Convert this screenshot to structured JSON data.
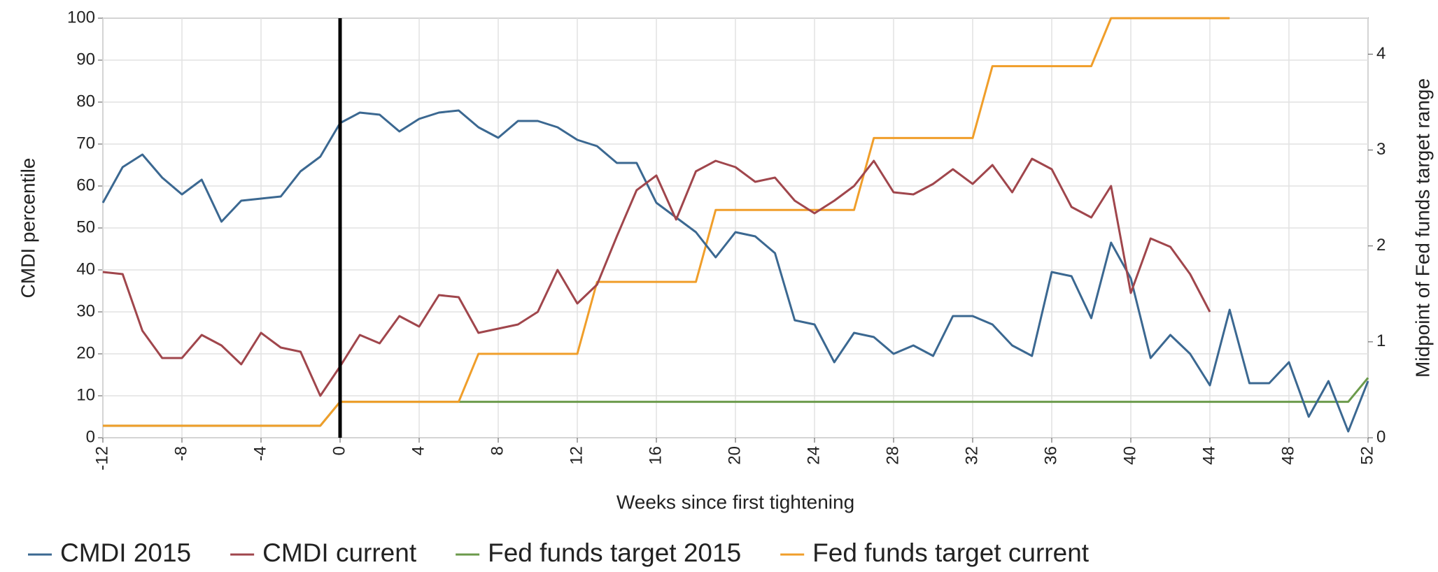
{
  "chart_data": {
    "type": "line",
    "xlabel": "Weeks since first tightening",
    "ylabel": "CMDI percentile",
    "y2label": "Midpoint of Fed funds target range",
    "x": [
      -12,
      -11,
      -10,
      -9,
      -8,
      -7,
      -6,
      -5,
      -4,
      -3,
      -2,
      -1,
      0,
      1,
      2,
      3,
      4,
      5,
      6,
      7,
      8,
      9,
      10,
      11,
      12,
      13,
      14,
      15,
      16,
      17,
      18,
      19,
      20,
      21,
      22,
      23,
      24,
      25,
      26,
      27,
      28,
      29,
      30,
      31,
      32,
      33,
      34,
      35,
      36,
      37,
      38,
      39,
      40,
      41,
      42,
      43,
      44,
      45,
      46,
      47,
      48,
      49,
      50,
      51,
      52
    ],
    "series": [
      {
        "name": "CMDI 2015",
        "color": "#3b6891",
        "values": [
          56,
          64.5,
          67.5,
          62,
          58,
          61.5,
          51.5,
          56.5,
          57,
          57.5,
          63.5,
          67,
          75,
          77.5,
          77,
          73,
          76,
          77.5,
          78,
          74,
          71.5,
          75.5,
          75.5,
          74,
          71,
          69.5,
          65.5,
          65.5,
          56,
          52.5,
          49,
          43,
          49,
          48,
          44,
          28,
          27,
          18,
          25,
          24,
          20,
          22,
          19.5,
          29,
          29,
          27,
          22,
          19.5,
          39.5,
          38.5,
          28.5,
          46.5,
          38,
          19,
          24.5,
          20,
          12.5,
          30.5,
          13,
          13,
          18,
          5,
          13.5,
          1.5,
          13.5
        ]
      },
      {
        "name": "CMDI current",
        "color": "#a0464c",
        "values": [
          39.5,
          39,
          25.5,
          19,
          19,
          24.5,
          22,
          17.5,
          25,
          21.5,
          20.5,
          10,
          17,
          24.5,
          22.5,
          29,
          26.5,
          34,
          33.5,
          25,
          26,
          27,
          30,
          40,
          32,
          36.5,
          48,
          59,
          62.5,
          52,
          63.5,
          66,
          64.5,
          61,
          62,
          56.5,
          53.5,
          56.5,
          60,
          66,
          58.5,
          58,
          60.5,
          64,
          60.5,
          65,
          58.5,
          66.5,
          64,
          55,
          52.5,
          60,
          34.5,
          47.5,
          45.5,
          39,
          30,
          null,
          null,
          null,
          null,
          null,
          null,
          null,
          null
        ]
      },
      {
        "name": "Fed funds target 2015",
        "color": "#6b9a4b",
        "axis": "y2",
        "values": [
          0.125,
          0.125,
          0.125,
          0.125,
          0.125,
          0.125,
          0.125,
          0.125,
          0.125,
          0.125,
          0.125,
          0.125,
          0.375,
          0.375,
          0.375,
          0.375,
          0.375,
          0.375,
          0.375,
          0.375,
          0.375,
          0.375,
          0.375,
          0.375,
          0.375,
          0.375,
          0.375,
          0.375,
          0.375,
          0.375,
          0.375,
          0.375,
          0.375,
          0.375,
          0.375,
          0.375,
          0.375,
          0.375,
          0.375,
          0.375,
          0.375,
          0.375,
          0.375,
          0.375,
          0.375,
          0.375,
          0.375,
          0.375,
          0.375,
          0.375,
          0.375,
          0.375,
          0.375,
          0.375,
          0.375,
          0.375,
          0.375,
          0.375,
          0.375,
          0.375,
          0.375,
          0.375,
          0.375,
          0.375,
          0.625
        ]
      },
      {
        "name": "Fed funds target current",
        "color": "#f09e2a",
        "axis": "y2",
        "values": [
          0.125,
          0.125,
          0.125,
          0.125,
          0.125,
          0.125,
          0.125,
          0.125,
          0.125,
          0.125,
          0.125,
          0.125,
          0.375,
          0.375,
          0.375,
          0.375,
          0.375,
          0.375,
          0.375,
          0.875,
          0.875,
          0.875,
          0.875,
          0.875,
          0.875,
          1.625,
          1.625,
          1.625,
          1.625,
          1.625,
          1.625,
          2.375,
          2.375,
          2.375,
          2.375,
          2.375,
          2.375,
          2.375,
          2.375,
          3.125,
          3.125,
          3.125,
          3.125,
          3.125,
          3.125,
          3.875,
          3.875,
          3.875,
          3.875,
          3.875,
          3.875,
          4.375,
          4.375,
          4.375,
          4.375,
          4.375,
          4.375,
          4.375,
          null,
          null,
          null,
          null,
          null,
          null,
          null
        ]
      }
    ],
    "xlim": [
      -12,
      52
    ],
    "xticks": [
      -12,
      -8,
      -4,
      0,
      4,
      8,
      12,
      16,
      20,
      24,
      28,
      32,
      36,
      40,
      44,
      48,
      52
    ],
    "ylim": [
      0,
      100
    ],
    "yticks": [
      0,
      10,
      20,
      30,
      40,
      50,
      60,
      70,
      80,
      90,
      100
    ],
    "y2lim": [
      0,
      4.375
    ],
    "y2ticks": [
      0,
      1,
      2,
      3,
      4
    ],
    "vline_x": 0,
    "grid": true,
    "legend": "bottom"
  }
}
